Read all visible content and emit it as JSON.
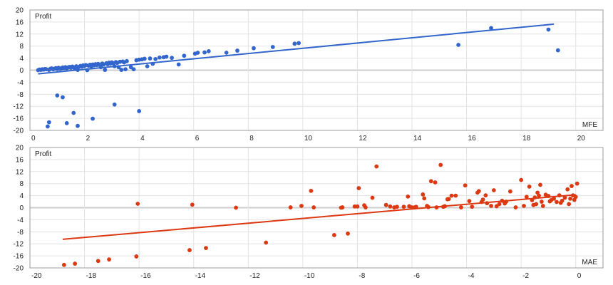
{
  "chart_data": [
    {
      "type": "scatter",
      "title": "",
      "xlabel": "MFE",
      "ylabel": "Profit",
      "xlim": [
        0,
        21
      ],
      "ylim": [
        -20,
        20
      ],
      "xticks": [
        0,
        2,
        4,
        6,
        8,
        10,
        12,
        14,
        16,
        18,
        20
      ],
      "yticks": [
        20,
        16,
        12,
        8,
        4,
        0,
        -4,
        -8,
        -12,
        -16,
        -20
      ],
      "grid": true,
      "legend": "none",
      "color": "#3366CC",
      "trendline": {
        "x0": 0.3,
        "y0": -1.2,
        "x1": 19.2,
        "y1": 15.3
      },
      "points": [
        [
          0.3,
          0.0
        ],
        [
          0.35,
          0.2
        ],
        [
          0.4,
          0.1
        ],
        [
          0.45,
          0.3
        ],
        [
          0.5,
          0.2
        ],
        [
          0.55,
          0.4
        ],
        [
          0.6,
          0.3
        ],
        [
          0.7,
          0.1
        ],
        [
          0.75,
          0.5
        ],
        [
          0.8,
          0.6
        ],
        [
          0.85,
          0.3
        ],
        [
          0.9,
          0.5
        ],
        [
          0.95,
          0.7
        ],
        [
          1.0,
          0.4
        ],
        [
          1.05,
          0.8
        ],
        [
          1.1,
          0.5
        ],
        [
          1.15,
          0.6
        ],
        [
          1.2,
          0.9
        ],
        [
          1.25,
          0.7
        ],
        [
          1.3,
          1.0
        ],
        [
          1.35,
          0.6
        ],
        [
          1.4,
          0.9
        ],
        [
          1.45,
          1.1
        ],
        [
          1.5,
          0.8
        ],
        [
          1.55,
          1.2
        ],
        [
          1.6,
          1.0
        ],
        [
          1.65,
          0.4
        ],
        [
          1.7,
          1.3
        ],
        [
          1.75,
          0.1
        ],
        [
          1.8,
          1.1
        ],
        [
          1.85,
          1.4
        ],
        [
          1.9,
          1.2
        ],
        [
          1.95,
          1.6
        ],
        [
          2.0,
          1.4
        ],
        [
          2.05,
          1.7
        ],
        [
          2.1,
          0.0
        ],
        [
          2.15,
          1.5
        ],
        [
          2.2,
          1.8
        ],
        [
          2.25,
          1.3
        ],
        [
          2.3,
          1.9
        ],
        [
          2.35,
          1.6
        ],
        [
          2.4,
          2.0
        ],
        [
          2.45,
          1.7
        ],
        [
          2.5,
          2.1
        ],
        [
          2.55,
          1.8
        ],
        [
          2.6,
          1.0
        ],
        [
          2.65,
          2.2
        ],
        [
          2.7,
          1.9
        ],
        [
          2.75,
          0.1
        ],
        [
          2.8,
          2.3
        ],
        [
          2.85,
          2.0
        ],
        [
          2.9,
          2.5
        ],
        [
          2.95,
          2.2
        ],
        [
          3.0,
          2.6
        ],
        [
          3.05,
          2.3
        ],
        [
          3.1,
          1.3
        ],
        [
          3.15,
          2.7
        ],
        [
          3.2,
          2.4
        ],
        [
          3.25,
          1.0
        ],
        [
          3.3,
          2.8
        ],
        [
          3.35,
          0.1
        ],
        [
          3.4,
          2.9
        ],
        [
          3.45,
          2.6
        ],
        [
          3.5,
          0.3
        ],
        [
          3.55,
          3.0
        ],
        [
          3.7,
          1.0
        ],
        [
          3.8,
          0.3
        ],
        [
          3.9,
          3.3
        ],
        [
          4.0,
          3.5
        ],
        [
          4.1,
          3.6
        ],
        [
          4.2,
          3.8
        ],
        [
          4.3,
          1.3
        ],
        [
          4.4,
          3.9
        ],
        [
          4.5,
          2.1
        ],
        [
          4.6,
          3.7
        ],
        [
          4.75,
          4.2
        ],
        [
          4.9,
          4.3
        ],
        [
          5.0,
          4.5
        ],
        [
          5.2,
          4.1
        ],
        [
          5.45,
          1.9
        ],
        [
          5.65,
          4.8
        ],
        [
          6.05,
          5.5
        ],
        [
          6.15,
          5.8
        ],
        [
          6.4,
          5.9
        ],
        [
          6.55,
          6.3
        ],
        [
          7.2,
          5.8
        ],
        [
          7.6,
          6.5
        ],
        [
          8.2,
          7.3
        ],
        [
          8.9,
          7.7
        ],
        [
          9.7,
          8.8
        ],
        [
          9.85,
          9.0
        ],
        [
          15.7,
          8.4
        ],
        [
          16.9,
          14.0
        ],
        [
          19.0,
          13.5
        ],
        [
          19.35,
          6.6
        ],
        [
          0.65,
          -18.7
        ],
        [
          0.7,
          -17.3
        ],
        [
          1.0,
          -8.4
        ],
        [
          1.2,
          -9.0
        ],
        [
          1.35,
          -17.6
        ],
        [
          1.6,
          -14.2
        ],
        [
          1.75,
          -18.5
        ],
        [
          2.3,
          -16.1
        ],
        [
          3.1,
          -11.4
        ],
        [
          4.0,
          -13.6
        ]
      ]
    },
    {
      "type": "scatter",
      "title": "",
      "xlabel": "MAE",
      "ylabel": "Profit",
      "xlim": [
        -20,
        1
      ],
      "ylim": [
        -20,
        20
      ],
      "xticks": [
        -20,
        -18,
        -16,
        -14,
        -12,
        -10,
        -8,
        -6,
        -4,
        -2,
        0
      ],
      "yticks": [
        20,
        16,
        12,
        8,
        4,
        0,
        -4,
        -8,
        -12,
        -16,
        -20
      ],
      "grid": true,
      "legend": "none",
      "color": "#DC3912",
      "trendline": {
        "x0": -18.8,
        "y0": -10.5,
        "x1": 0.0,
        "y1": 4.3
      },
      "points": [
        [
          -18.75,
          -19.0
        ],
        [
          -18.35,
          -18.6
        ],
        [
          -17.5,
          -17.7
        ],
        [
          -17.1,
          -17.2
        ],
        [
          -16.05,
          1.3
        ],
        [
          -16.1,
          -16.2
        ],
        [
          -14.05,
          1.0
        ],
        [
          -14.15,
          -14.1
        ],
        [
          -13.55,
          -13.4
        ],
        [
          -12.45,
          0.0
        ],
        [
          -11.35,
          -11.6
        ],
        [
          -10.45,
          0.1
        ],
        [
          -10.05,
          0.6
        ],
        [
          -9.7,
          5.6
        ],
        [
          -9.6,
          0.1
        ],
        [
          -8.85,
          -9.1
        ],
        [
          -8.6,
          0.0
        ],
        [
          -8.55,
          0.1
        ],
        [
          -8.35,
          -8.6
        ],
        [
          -8.1,
          0.4
        ],
        [
          -8.0,
          0.4
        ],
        [
          -7.95,
          6.5
        ],
        [
          -7.75,
          0.8
        ],
        [
          -7.7,
          0.1
        ],
        [
          -7.45,
          3.3
        ],
        [
          -7.3,
          13.7
        ],
        [
          -6.95,
          0.9
        ],
        [
          -6.8,
          0.4
        ],
        [
          -6.65,
          0.1
        ],
        [
          -6.55,
          0.3
        ],
        [
          -6.3,
          0.3
        ],
        [
          -6.15,
          3.7
        ],
        [
          -6.1,
          0.5
        ],
        [
          -6.0,
          0.1
        ],
        [
          -5.9,
          0.1
        ],
        [
          -5.85,
          0.3
        ],
        [
          -5.6,
          4.4
        ],
        [
          -5.55,
          3.1
        ],
        [
          -5.45,
          0.6
        ],
        [
          -5.4,
          0.2
        ],
        [
          -5.3,
          8.8
        ],
        [
          -5.15,
          8.4
        ],
        [
          -5.1,
          0.1
        ],
        [
          -4.95,
          14.2
        ],
        [
          -4.85,
          0.3
        ],
        [
          -4.8,
          0.5
        ],
        [
          -4.7,
          2.8
        ],
        [
          -4.65,
          2.9
        ],
        [
          -4.55,
          4.0
        ],
        [
          -4.4,
          4.0
        ],
        [
          -4.2,
          0.1
        ],
        [
          -4.05,
          7.4
        ],
        [
          -3.9,
          2.2
        ],
        [
          -3.8,
          0.3
        ],
        [
          -3.6,
          5.0
        ],
        [
          -3.55,
          5.5
        ],
        [
          -3.45,
          1.9
        ],
        [
          -3.3,
          4.1
        ],
        [
          -3.25,
          1.5
        ],
        [
          -3.1,
          0.6
        ],
        [
          -3.0,
          5.8
        ],
        [
          -2.9,
          0.5
        ],
        [
          -2.8,
          1.2
        ],
        [
          -2.7,
          2.3
        ],
        [
          -2.55,
          2.0
        ],
        [
          -2.4,
          5.4
        ],
        [
          -2.2,
          0.1
        ],
        [
          -2.0,
          9.2
        ],
        [
          -1.9,
          0.6
        ],
        [
          -1.8,
          3.6
        ],
        [
          -1.7,
          7.0
        ],
        [
          -1.6,
          2.5
        ],
        [
          -1.5,
          3.4
        ],
        [
          -1.45,
          1.2
        ],
        [
          -1.4,
          5.0
        ],
        [
          -1.35,
          4.0
        ],
        [
          -1.3,
          7.6
        ],
        [
          -1.25,
          2.0
        ],
        [
          -1.2,
          0.6
        ],
        [
          -1.1,
          4.3
        ],
        [
          -1.0,
          3.9
        ],
        [
          -0.9,
          2.5
        ],
        [
          -0.8,
          3.0
        ],
        [
          -0.7,
          1.9
        ],
        [
          -0.6,
          4.1
        ],
        [
          -0.5,
          2.3
        ],
        [
          -0.4,
          3.3
        ],
        [
          -0.3,
          6.1
        ],
        [
          -0.25,
          1.2
        ],
        [
          -0.2,
          3.0
        ],
        [
          -0.15,
          7.2
        ],
        [
          -0.1,
          4.1
        ],
        [
          -0.05,
          2.6
        ],
        [
          0.05,
          8.0
        ],
        [
          0.0,
          3.6
        ],
        [
          -0.55,
          1.6
        ],
        [
          -0.95,
          2.1
        ],
        [
          -1.55,
          0.9
        ],
        [
          -2.6,
          1.4
        ],
        [
          -3.4,
          2.7
        ]
      ]
    }
  ],
  "charts": {
    "top": {
      "ylabel": "Profit",
      "xlabel": "MFE",
      "xticks": [
        "0",
        "2",
        "4",
        "6",
        "8",
        "10",
        "12",
        "14",
        "16",
        "18",
        "20"
      ],
      "yticks": [
        "20",
        "16",
        "12",
        "8",
        "4",
        "0",
        "-4",
        "-8",
        "-12",
        "-16",
        "-20"
      ]
    },
    "bottom": {
      "ylabel": "Profit",
      "xlabel": "MAE",
      "xticks": [
        "-20",
        "-18",
        "-16",
        "-14",
        "-12",
        "-10",
        "-8",
        "-6",
        "-4",
        "-2",
        "0"
      ],
      "yticks": [
        "20",
        "16",
        "12",
        "8",
        "4",
        "0",
        "-4",
        "-8",
        "-12",
        "-16",
        "-20"
      ]
    }
  }
}
